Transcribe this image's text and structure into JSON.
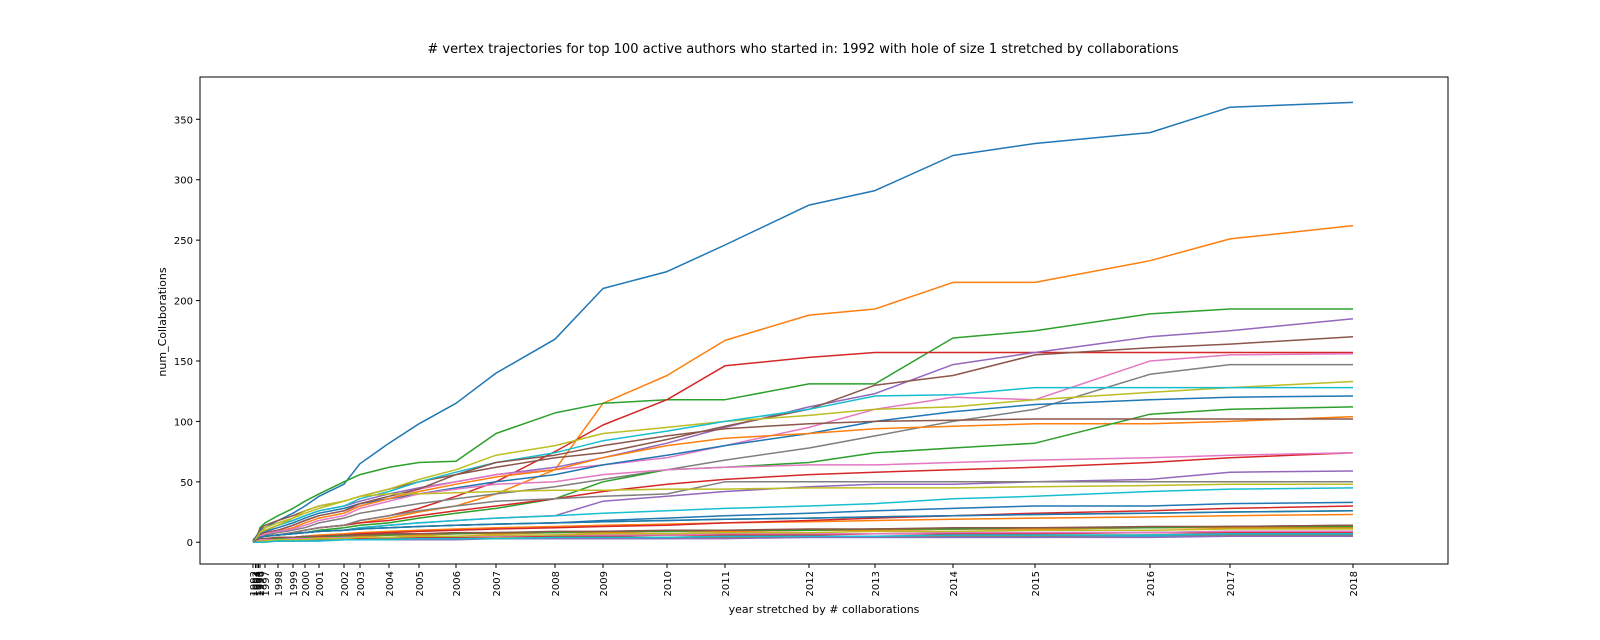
{
  "chart_data": {
    "type": "line",
    "title": "# vertex trajectories for top 100 active authors who started in: 1992 with hole of size 1 stretched by collaborations",
    "xlabel": "year stretched by # collaborations",
    "ylabel": "num_Collaborations",
    "x_tick_labels": [
      "1992",
      "1993",
      "1994",
      "1995",
      "1996",
      "1997",
      "1998",
      "1999",
      "2000",
      "2001",
      "2002",
      "2003",
      "2004",
      "2005",
      "2006",
      "2007",
      "2008",
      "2009",
      "2010",
      "2011",
      "2012",
      "2013",
      "2014",
      "2015",
      "2016",
      "2017",
      "2018"
    ],
    "y_ticks": [
      0,
      50,
      100,
      150,
      200,
      250,
      300,
      350
    ],
    "ylim": [
      -18,
      385
    ],
    "grid": false,
    "legend": "none",
    "x": [
      1992,
      1993,
      1994,
      1995,
      1996,
      1997,
      1998,
      1999,
      2000,
      2001,
      2002,
      2003,
      2004,
      2005,
      2006,
      2007,
      2008,
      2009,
      2010,
      2011,
      2012,
      2013,
      2014,
      2015,
      2016,
      2017,
      2018
    ],
    "series": [
      {
        "color": "#1f77b4",
        "values": [
          2,
          4,
          6,
          8,
          10,
          12,
          18,
          24,
          30,
          38,
          48,
          65,
          82,
          98,
          115,
          140,
          168,
          210,
          224,
          246,
          279,
          291,
          320,
          330,
          339,
          360,
          364
        ]
      },
      {
        "color": "#ff7f0e",
        "values": [
          0,
          1,
          2,
          3,
          4,
          5,
          6,
          8,
          10,
          12,
          14,
          16,
          20,
          25,
          30,
          40,
          60,
          115,
          138,
          167,
          188,
          193,
          215,
          215,
          233,
          251,
          262
        ]
      },
      {
        "color": "#2ca02c",
        "values": [
          1,
          3,
          5,
          8,
          12,
          16,
          22,
          28,
          34,
          40,
          50,
          56,
          62,
          66,
          67,
          90,
          107,
          115,
          118,
          118,
          131,
          131,
          169,
          175,
          189,
          193,
          193
        ]
      },
      {
        "color": "#d62728",
        "values": [
          0,
          1,
          2,
          3,
          4,
          5,
          6,
          8,
          10,
          12,
          14,
          18,
          22,
          28,
          38,
          50,
          75,
          97,
          118,
          146,
          153,
          157,
          157,
          157,
          157,
          157,
          157
        ]
      },
      {
        "color": "#9467bd",
        "values": [
          0,
          2,
          4,
          6,
          8,
          10,
          14,
          18,
          22,
          26,
          30,
          34,
          40,
          45,
          50,
          56,
          62,
          70,
          82,
          95,
          112,
          123,
          147,
          157,
          170,
          175,
          185
        ]
      },
      {
        "color": "#8c564b",
        "values": [
          1,
          3,
          5,
          8,
          11,
          14,
          18,
          22,
          26,
          30,
          34,
          38,
          44,
          50,
          56,
          62,
          70,
          74,
          85,
          96,
          110,
          130,
          138,
          155,
          161,
          164,
          170
        ]
      },
      {
        "color": "#e377c2",
        "values": [
          0,
          1,
          2,
          4,
          6,
          8,
          10,
          14,
          18,
          22,
          26,
          30,
          36,
          44,
          50,
          56,
          60,
          64,
          70,
          80,
          95,
          110,
          120,
          118,
          150,
          155,
          156
        ]
      },
      {
        "color": "#7f7f7f",
        "values": [
          0,
          1,
          2,
          3,
          4,
          6,
          8,
          10,
          12,
          16,
          20,
          24,
          28,
          32,
          36,
          40,
          46,
          52,
          60,
          68,
          78,
          88,
          100,
          110,
          139,
          147,
          147
        ]
      },
      {
        "color": "#bcbd22",
        "values": [
          0,
          2,
          4,
          6,
          8,
          12,
          16,
          20,
          24,
          28,
          34,
          38,
          44,
          52,
          60,
          72,
          80,
          90,
          95,
          100,
          105,
          110,
          112,
          118,
          124,
          128,
          133
        ]
      },
      {
        "color": "#17becf",
        "values": [
          0,
          2,
          4,
          6,
          8,
          10,
          14,
          18,
          22,
          26,
          30,
          36,
          42,
          50,
          58,
          66,
          74,
          84,
          92,
          100,
          110,
          121,
          122,
          128,
          128,
          128,
          128
        ]
      },
      {
        "color": "#1f77b4",
        "values": [
          0,
          1,
          3,
          5,
          7,
          9,
          12,
          16,
          20,
          24,
          28,
          32,
          36,
          40,
          45,
          50,
          56,
          64,
          72,
          80,
          90,
          100,
          108,
          114,
          118,
          120,
          121
        ]
      },
      {
        "color": "#ff7f0e",
        "values": [
          0,
          1,
          2,
          3,
          5,
          7,
          9,
          12,
          16,
          20,
          24,
          30,
          36,
          42,
          48,
          54,
          60,
          70,
          80,
          86,
          90,
          94,
          96,
          98,
          98,
          100,
          104
        ]
      },
      {
        "color": "#2ca02c",
        "values": [
          0,
          1,
          2,
          3,
          4,
          5,
          6,
          7,
          8,
          10,
          12,
          14,
          16,
          20,
          24,
          28,
          36,
          50,
          60,
          62,
          66,
          74,
          78,
          82,
          106,
          110,
          112
        ]
      },
      {
        "color": "#d62728",
        "values": [
          0,
          1,
          2,
          3,
          4,
          5,
          6,
          8,
          10,
          12,
          14,
          16,
          18,
          22,
          26,
          30,
          36,
          42,
          48,
          52,
          56,
          58,
          60,
          62,
          66,
          70,
          74
        ]
      },
      {
        "color": "#9467bd",
        "values": [
          0,
          1,
          2,
          3,
          4,
          5,
          6,
          7,
          8,
          9,
          10,
          12,
          14,
          16,
          18,
          20,
          22,
          34,
          38,
          42,
          46,
          48,
          48,
          50,
          52,
          58,
          59
        ]
      },
      {
        "color": "#8c564b",
        "values": [
          0,
          1,
          2,
          4,
          6,
          8,
          10,
          14,
          18,
          22,
          26,
          32,
          38,
          44,
          56,
          66,
          72,
          80,
          88,
          94,
          98,
          100,
          101,
          102,
          102,
          102,
          102
        ]
      },
      {
        "color": "#e377c2",
        "values": [
          0,
          1,
          2,
          3,
          5,
          7,
          9,
          11,
          14,
          18,
          22,
          28,
          34,
          40,
          44,
          48,
          50,
          56,
          60,
          62,
          64,
          64,
          66,
          68,
          70,
          72,
          74
        ]
      },
      {
        "color": "#7f7f7f",
        "values": [
          0,
          1,
          2,
          3,
          4,
          5,
          6,
          8,
          10,
          12,
          14,
          18,
          22,
          26,
          30,
          34,
          36,
          38,
          40,
          50,
          50,
          50,
          50,
          50,
          50,
          50,
          50
        ]
      },
      {
        "color": "#bcbd22",
        "values": [
          0,
          2,
          4,
          6,
          8,
          10,
          14,
          20,
          26,
          30,
          34,
          38,
          40,
          40,
          41,
          42,
          43,
          43,
          44,
          44,
          45,
          45,
          45,
          46,
          47,
          48,
          48
        ]
      },
      {
        "color": "#17becf",
        "values": [
          0,
          1,
          2,
          3,
          4,
          5,
          6,
          7,
          8,
          9,
          10,
          12,
          14,
          16,
          18,
          20,
          22,
          24,
          26,
          28,
          30,
          32,
          36,
          38,
          42,
          44,
          45
        ]
      },
      {
        "color": "#1f77b4",
        "values": [
          0,
          1,
          2,
          3,
          4,
          5,
          6,
          7,
          8,
          9,
          10,
          11,
          12,
          13,
          14,
          15,
          16,
          18,
          20,
          22,
          24,
          26,
          28,
          30,
          30,
          32,
          33
        ]
      },
      {
        "color": "#ff7f0e",
        "values": [
          0,
          1,
          1,
          2,
          2,
          3,
          3,
          4,
          5,
          6,
          7,
          8,
          9,
          10,
          11,
          12,
          13,
          14,
          15,
          16,
          17,
          18,
          19,
          20,
          21,
          22,
          23
        ]
      },
      {
        "color": "#2ca02c",
        "values": [
          0,
          1,
          2,
          3,
          4,
          5,
          6,
          7,
          8,
          9,
          10,
          11,
          12,
          13,
          14,
          15,
          16,
          17,
          18,
          19,
          20,
          21,
          22,
          23,
          24,
          25,
          26
        ]
      },
      {
        "color": "#d62728",
        "values": [
          0,
          1,
          2,
          2,
          3,
          3,
          4,
          4,
          5,
          5,
          6,
          7,
          8,
          9,
          10,
          11,
          12,
          13,
          14,
          16,
          18,
          20,
          22,
          24,
          26,
          28,
          30
        ]
      },
      {
        "color": "#9467bd",
        "values": [
          0,
          0,
          1,
          1,
          2,
          2,
          3,
          3,
          4,
          4,
          5,
          5,
          6,
          6,
          7,
          7,
          8,
          8,
          9,
          9,
          10,
          10,
          11,
          11,
          12,
          12,
          13
        ]
      },
      {
        "color": "#8c564b",
        "values": [
          0,
          1,
          1,
          2,
          2,
          3,
          3,
          4,
          4,
          5,
          5,
          6,
          6,
          7,
          7,
          8,
          8,
          9,
          9,
          10,
          10,
          11,
          11,
          12,
          12,
          13,
          14
        ]
      },
      {
        "color": "#e377c2",
        "values": [
          0,
          0,
          1,
          1,
          1,
          2,
          2,
          2,
          3,
          3,
          3,
          4,
          4,
          4,
          5,
          5,
          5,
          6,
          6,
          6,
          7,
          7,
          7,
          8,
          8,
          8,
          9
        ]
      },
      {
        "color": "#7f7f7f",
        "values": [
          0,
          1,
          1,
          1,
          2,
          2,
          2,
          3,
          3,
          3,
          4,
          4,
          4,
          5,
          5,
          5,
          6,
          6,
          6,
          7,
          7,
          7,
          8,
          8,
          8,
          9,
          9
        ]
      },
      {
        "color": "#bcbd22",
        "values": [
          0,
          0,
          0,
          1,
          1,
          1,
          1,
          2,
          2,
          2,
          2,
          3,
          3,
          3,
          3,
          4,
          4,
          4,
          4,
          5,
          5,
          5,
          5,
          6,
          6,
          6,
          6
        ]
      },
      {
        "color": "#17becf",
        "values": [
          0,
          0,
          0,
          0,
          1,
          1,
          1,
          1,
          1,
          2,
          2,
          2,
          2,
          2,
          3,
          3,
          3,
          3,
          3,
          4,
          4,
          4,
          4,
          4,
          5,
          5,
          5
        ]
      },
      {
        "color": "#1f77b4",
        "values": [
          0,
          1,
          2,
          3,
          4,
          5,
          6,
          7,
          8,
          9,
          10,
          11,
          12,
          13,
          14,
          15,
          16,
          17,
          18,
          19,
          20,
          21,
          22,
          23,
          24,
          25,
          26
        ]
      },
      {
        "color": "#ff7f0e",
        "values": [
          0,
          0,
          1,
          1,
          2,
          2,
          3,
          3,
          4,
          4,
          5,
          5,
          6,
          6,
          7,
          7,
          8,
          8,
          9,
          9,
          10,
          10,
          11,
          11,
          12,
          12,
          12
        ]
      },
      {
        "color": "#2ca02c",
        "values": [
          0,
          1,
          1,
          2,
          2,
          3,
          3,
          4,
          4,
          5,
          5,
          6,
          6,
          7,
          7,
          8,
          8,
          9,
          9,
          10,
          10,
          11,
          11,
          12,
          12,
          13,
          13
        ]
      },
      {
        "color": "#d62728",
        "values": [
          0,
          0,
          0,
          1,
          1,
          1,
          2,
          2,
          2,
          3,
          3,
          3,
          4,
          4,
          4,
          5,
          5,
          5,
          6,
          6,
          6,
          7,
          7,
          7,
          8,
          8,
          8
        ]
      },
      {
        "color": "#9467bd",
        "values": [
          0,
          0,
          0,
          0,
          0,
          1,
          1,
          1,
          1,
          1,
          2,
          2,
          2,
          2,
          2,
          3,
          3,
          3,
          3,
          3,
          4,
          4,
          4,
          4,
          4,
          5,
          5
        ]
      },
      {
        "color": "#8c564b",
        "values": [
          0,
          1,
          2,
          2,
          3,
          3,
          4,
          4,
          5,
          5,
          6,
          6,
          7,
          7,
          8,
          8,
          9,
          9,
          10,
          10,
          11,
          11,
          12,
          12,
          13,
          13,
          14
        ]
      },
      {
        "color": "#e377c2",
        "values": [
          0,
          0,
          1,
          1,
          2,
          2,
          2,
          3,
          3,
          3,
          4,
          4,
          4,
          5,
          5,
          5,
          6,
          6,
          6,
          7,
          7,
          7,
          8,
          8,
          8,
          9,
          9
        ]
      },
      {
        "color": "#7f7f7f",
        "values": [
          0,
          0,
          0,
          0,
          1,
          1,
          1,
          1,
          2,
          2,
          2,
          2,
          3,
          3,
          3,
          3,
          4,
          4,
          4,
          4,
          5,
          5,
          5,
          5,
          6,
          6,
          6
        ]
      },
      {
        "color": "#bcbd22",
        "values": [
          0,
          0,
          0,
          1,
          1,
          1,
          2,
          2,
          2,
          3,
          3,
          4,
          4,
          5,
          5,
          6,
          6,
          7,
          7,
          8,
          8,
          9,
          9,
          10,
          10,
          11,
          11
        ]
      },
      {
        "color": "#17becf",
        "values": [
          0,
          0,
          0,
          0,
          0,
          0,
          1,
          1,
          1,
          1,
          2,
          2,
          2,
          3,
          3,
          3,
          4,
          4,
          4,
          5,
          5,
          5,
          6,
          6,
          6,
          7,
          7
        ]
      }
    ]
  }
}
